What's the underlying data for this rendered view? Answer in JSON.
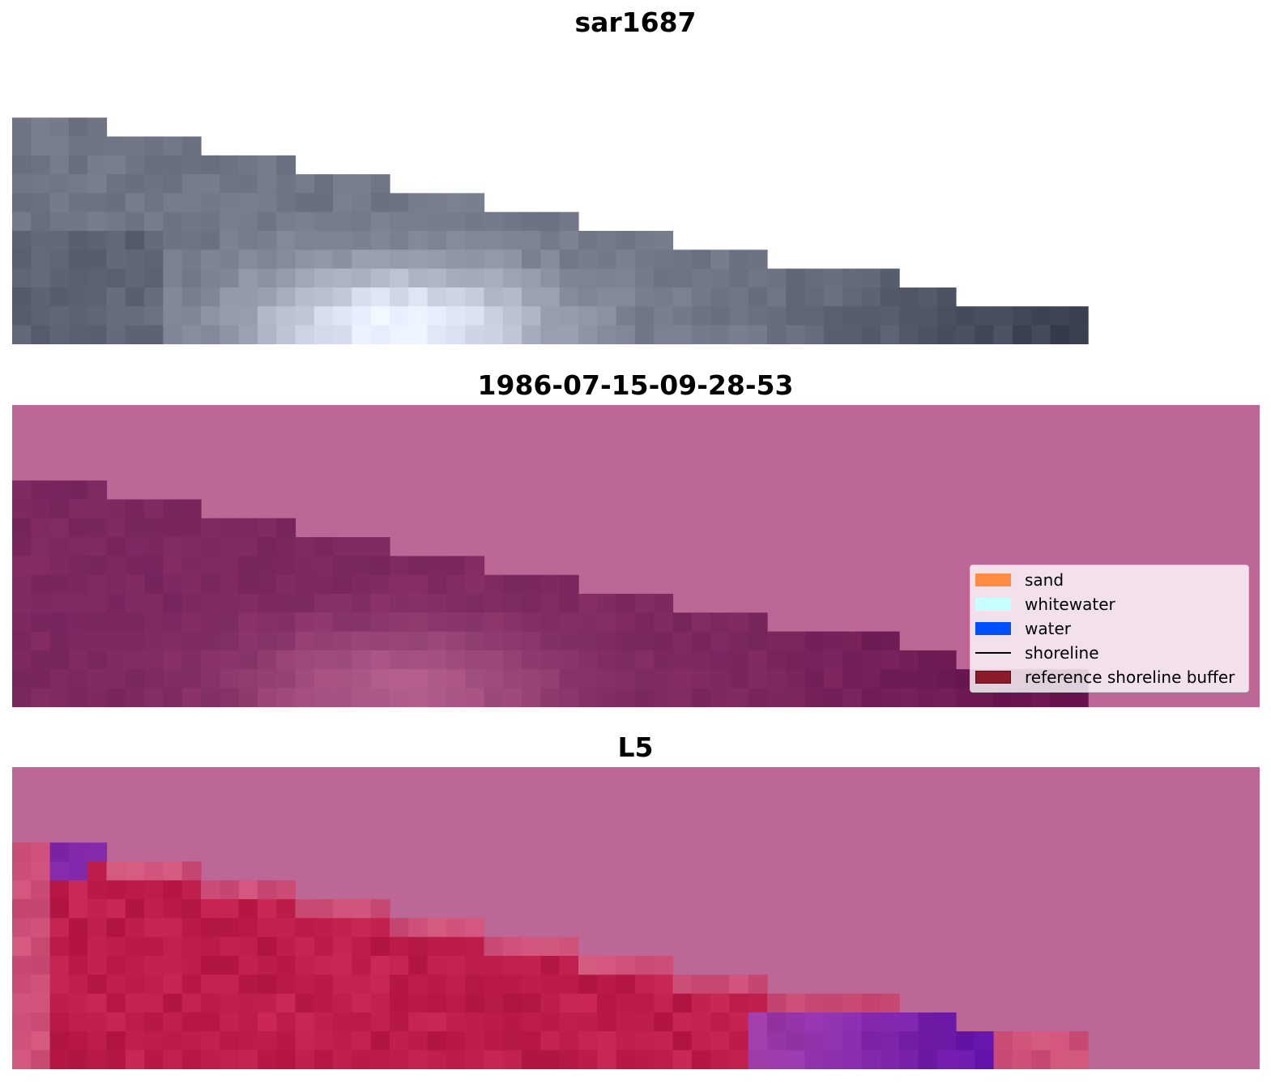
{
  "panels": [
    {
      "title": "sar1687"
    },
    {
      "title": "1986-07-15-09-28-53"
    },
    {
      "title": "L5"
    }
  ],
  "legend": {
    "entries": [
      {
        "label": "sand",
        "color": "#ff8c40",
        "kind": "patch"
      },
      {
        "label": "whitewater",
        "color": "#c8ffff",
        "kind": "patch"
      },
      {
        "label": "water",
        "color": "#0050ff",
        "kind": "patch"
      },
      {
        "label": "shoreline",
        "color": "#000000",
        "kind": "line"
      },
      {
        "label": "reference shoreline buffer",
        "color": "#8b1a2a",
        "kind": "patch"
      }
    ]
  },
  "colors": {
    "mask_pink": "#bc6795",
    "land_fill": "#c42a5a",
    "purple_accent": "#5a0aa8"
  }
}
